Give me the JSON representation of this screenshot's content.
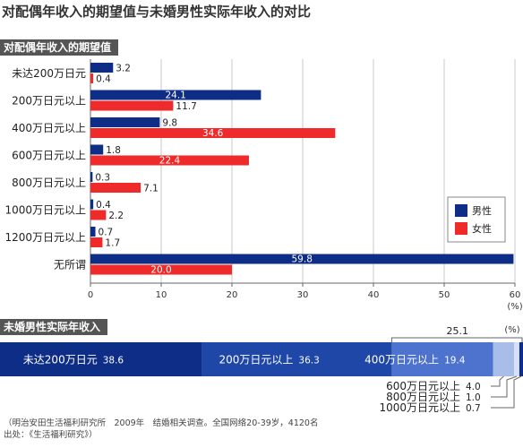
{
  "title": "对配偶年收入的期望值与未婚男性实际年收入的对比",
  "colors": {
    "male": "#0d2d87",
    "female": "#ee2a2a",
    "grid": "#c8c8c8",
    "axis": "#666666"
  },
  "chart_data": [
    {
      "type": "bar",
      "orientation": "horizontal",
      "title": "对配偶年收入的期望值",
      "categories": [
        "未达200万日元",
        "200万日元以上",
        "400万日元以上",
        "600万日元以上",
        "800万日元以上",
        "1000万日元以上",
        "1200万日元以上",
        "无所谓"
      ],
      "series": [
        {
          "name": "男性",
          "values": [
            3.2,
            24.1,
            9.8,
            1.8,
            0.3,
            0.4,
            0.7,
            59.8
          ]
        },
        {
          "name": "女性",
          "values": [
            0.4,
            11.7,
            34.6,
            22.4,
            7.1,
            2.2,
            1.7,
            20.0
          ]
        }
      ],
      "xlim": [
        0,
        60
      ],
      "xticks": [
        0,
        10,
        20,
        30,
        40,
        50,
        60
      ],
      "xunit": "(%)",
      "grid": true,
      "legend_position": "right"
    },
    {
      "type": "bar",
      "orientation": "stacked-horizontal",
      "title": "未婚男性实际年收入",
      "unit": "(%)",
      "segments": [
        {
          "label": "未达200万日元",
          "value": 38.6
        },
        {
          "label": "200万日元以上",
          "value": 36.3
        },
        {
          "label": "400万日元以上",
          "value": 19.4
        },
        {
          "label": "600万日元以上",
          "value": 4.0
        },
        {
          "label": "800万日元以上",
          "value": 1.0
        },
        {
          "label": "1000万日元以上",
          "value": 0.7
        }
      ],
      "group_total_label": "25.1"
    }
  ],
  "source": [
    "（明治安田生活福利研究所　2009年　结婚相关调查。全国网络20-39岁，4120名",
    "出处：《生活福利研究》）"
  ]
}
